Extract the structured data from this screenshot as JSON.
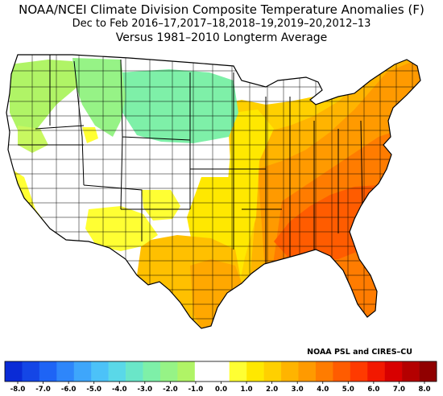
{
  "title": {
    "line1": "NOAA/NCEI Climate Division Composite Temperature Anomalies (F)",
    "line2": "Dec to Feb  2016–17,2017–18,2018–19,2019–20,2012–13",
    "line3": "Versus 1981–2010 Longterm Average"
  },
  "credit": "NOAA PSL and CIRES–CU",
  "colorbar": {
    "tick_labels": [
      "-8.0",
      "-7.0",
      "-6.0",
      "-5.0",
      "-4.0",
      "-3.0",
      "-2.0",
      "-1.0",
      "0.0",
      "1.0",
      "2.0",
      "3.0",
      "4.0",
      "5.0",
      "6.0",
      "7.0",
      "8.0"
    ],
    "colors": [
      "#0a2bd6",
      "#1446e6",
      "#1e64f5",
      "#2e86fa",
      "#3ea6fb",
      "#4cc2f8",
      "#5ad8e8",
      "#6ae6c8",
      "#7ef0a8",
      "#96f386",
      "#b0f466",
      "#ffffff",
      "#ffffff",
      "#ffff33",
      "#ffe800",
      "#ffd000",
      "#ffb400",
      "#ff9a00",
      "#ff7c00",
      "#ff5c00",
      "#ff3a00",
      "#f21800",
      "#d80000",
      "#b40000",
      "#900000"
    ]
  }
}
